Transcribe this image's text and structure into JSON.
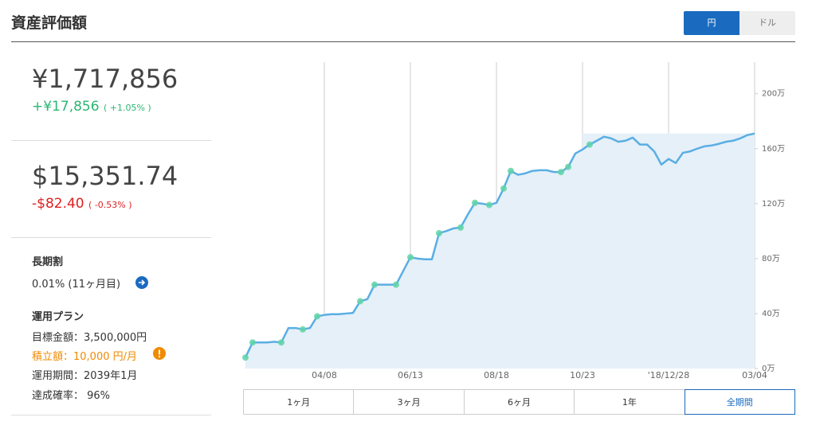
{
  "header": {
    "title": "資産評価額",
    "currency_toggle": [
      "円",
      "ドル"
    ]
  },
  "summary": {
    "jpy": {
      "value": "¥1,717,856",
      "change": "+¥17,856",
      "percent": "( +1.05% )"
    },
    "usd": {
      "value": "$15,351.74",
      "change": "-$82.40",
      "percent": "( -0.53% )"
    }
  },
  "discount": {
    "label": "長期割",
    "value": "0.01% (11ヶ月目)"
  },
  "plan": {
    "title": "運用プラン",
    "items": [
      "目標金額：3,500,000円",
      "積立額：10,000 円/月",
      "運用期間：2039年1月",
      "達成確率： 96%"
    ]
  },
  "chart_data": {
    "type": "line",
    "categories": [
      null,
      null,
      null,
      null,
      null,
      null,
      null,
      null,
      null,
      null,
      null,
      "04/08",
      null,
      null,
      null,
      null,
      null,
      null,
      null,
      null,
      null,
      null,
      null,
      "06/13",
      null,
      null,
      null,
      null,
      null,
      null,
      null,
      null,
      null,
      null,
      null,
      "08/18",
      null,
      null,
      null,
      null,
      null,
      null,
      null,
      null,
      null,
      null,
      null,
      "10/23",
      null,
      null,
      null,
      null,
      null,
      null,
      null,
      null,
      null,
      null,
      null,
      "'18/12/28",
      null,
      null,
      null,
      null,
      null,
      null,
      null,
      null,
      null,
      null,
      null,
      "03/04"
    ],
    "series": [
      {
        "color": "#5aaee3",
        "values": [
          8,
          19,
          19,
          19,
          19.5,
          19,
          29.5,
          29.5,
          28.5,
          29.5,
          38,
          39,
          39.5,
          39.5,
          40,
          40.5,
          49,
          50.5,
          61,
          61,
          61,
          61,
          71,
          81,
          80,
          79.5,
          79.5,
          98.5,
          100,
          102,
          102.6,
          112,
          120.6,
          120,
          119,
          120.6,
          131,
          143.8,
          141,
          142,
          143.8,
          144.3,
          144.3,
          143,
          143,
          146.7,
          156.5,
          159.4,
          163,
          165.8,
          168.7,
          167.5,
          165,
          165.8,
          168,
          163,
          163,
          158,
          148.4,
          152.5,
          149.6,
          157,
          158,
          160,
          161.7,
          162.3,
          163.5,
          165,
          165.8,
          167.5,
          169.9,
          171
        ]
      },
      {
        "color": "#5fd3a7",
        "values": [
          8,
          19,
          null,
          null,
          null,
          19,
          null,
          null,
          28.5,
          null,
          38,
          null,
          null,
          null,
          null,
          null,
          49,
          null,
          61,
          null,
          null,
          61,
          null,
          81,
          null,
          null,
          null,
          98.5,
          null,
          null,
          102.6,
          null,
          120.6,
          null,
          119,
          null,
          131,
          143.8,
          null,
          null,
          null,
          null,
          null,
          null,
          143,
          146.7,
          null,
          null,
          163,
          null,
          null,
          null,
          null,
          null,
          null,
          null,
          null,
          null,
          null,
          null,
          null,
          null,
          null,
          null,
          null,
          null,
          null,
          null,
          null,
          null,
          null,
          null
        ]
      }
    ],
    "ylim": [
      0,
      223
    ],
    "yticks": [
      {
        "value": 0,
        "label": "0万"
      },
      {
        "value": 40,
        "label": "40万"
      },
      {
        "value": 80,
        "label": "80万"
      },
      {
        "value": 120,
        "label": "120万"
      },
      {
        "value": 160,
        "label": "160万"
      },
      {
        "value": 200,
        "label": "200万"
      }
    ]
  },
  "range_buttons": [
    "1ヶ月",
    "3ヶ月",
    "6ヶ月",
    "1年",
    "全期間"
  ]
}
